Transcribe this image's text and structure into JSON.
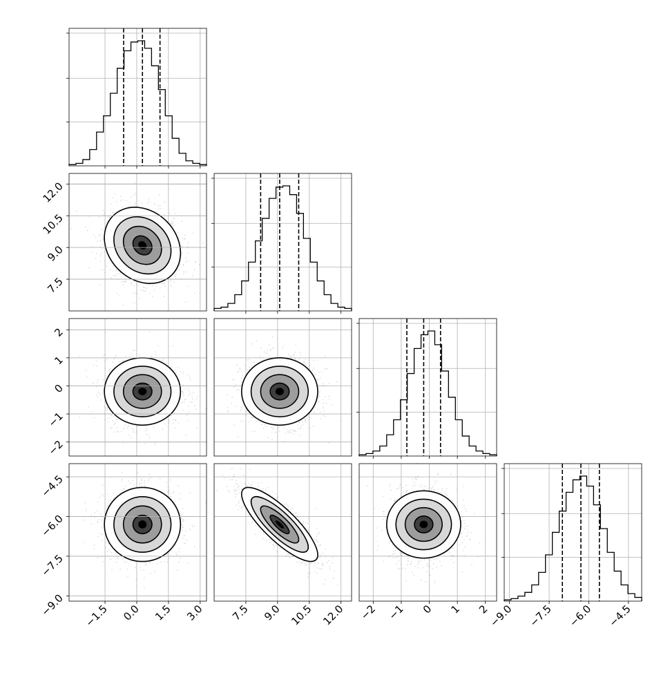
{
  "chart_data": {
    "type": "corner",
    "title": "",
    "parameters": [
      {
        "range": [
          -3.2,
          3.3
        ],
        "ticks": [
          -1.5,
          0.0,
          1.5,
          3.0
        ],
        "tick_labels": [
          "−1.5",
          "0.0",
          "1.5",
          "3.0"
        ],
        "quantiles": [
          -0.62,
          0.27,
          1.1
        ],
        "histogram": {
          "edges": [
            -3.2,
            -2.875,
            -2.55,
            -2.225,
            -1.9,
            -1.575,
            -1.25,
            -0.925,
            -0.6,
            -0.275,
            0.05,
            0.375,
            0.7,
            1.025,
            1.35,
            1.675,
            2.0,
            2.325,
            2.65,
            2.975,
            3.3
          ],
          "counts": [
            1,
            2,
            5,
            13,
            27,
            40,
            58,
            78,
            92,
            99,
            100,
            94,
            80,
            61,
            40,
            22,
            10,
            4,
            2,
            1
          ]
        }
      },
      {
        "range": [
          6.0,
          12.5
        ],
        "ticks": [
          7.5,
          9.0,
          10.5,
          12.0
        ],
        "tick_labels": [
          "7.5",
          "9.0",
          "10.5",
          "12.0"
        ],
        "quantiles": [
          8.2,
          9.1,
          10.0
        ],
        "histogram": {
          "edges": [
            6.0,
            6.325,
            6.65,
            6.975,
            7.3,
            7.625,
            7.95,
            8.275,
            8.6,
            8.925,
            9.25,
            9.575,
            9.9,
            10.225,
            10.55,
            10.875,
            11.2,
            11.525,
            11.85,
            12.175,
            12.5
          ],
          "counts": [
            2,
            3,
            6,
            13,
            24,
            39,
            56,
            74,
            90,
            99,
            100,
            93,
            78,
            58,
            39,
            24,
            13,
            6,
            3,
            2
          ]
        }
      },
      {
        "range": [
          -2.5,
          2.4
        ],
        "ticks": [
          -2,
          -1,
          0,
          1,
          2
        ],
        "tick_labels": [
          "−2",
          "−1",
          "0",
          "1",
          "2"
        ],
        "quantiles": [
          -0.8,
          -0.2,
          0.4
        ],
        "histogram": {
          "edges": [
            -2.5,
            -2.255,
            -2.01,
            -1.765,
            -1.52,
            -1.275,
            -1.03,
            -0.785,
            -0.54,
            -0.295,
            -0.05,
            0.195,
            0.44,
            0.685,
            0.93,
            1.175,
            1.42,
            1.665,
            1.91,
            2.155,
            2.4
          ],
          "counts": [
            1,
            2,
            4,
            8,
            17,
            29,
            45,
            66,
            86,
            97,
            100,
            89,
            68,
            47,
            29,
            16,
            8,
            4,
            2,
            1
          ]
        }
      },
      {
        "range": [
          -9.2,
          -4.0
        ],
        "ticks": [
          -9.0,
          -7.5,
          -6.0,
          -4.5
        ],
        "tick_labels": [
          "−9.0",
          "−7.5",
          "−6.0",
          "−4.5"
        ],
        "quantiles": [
          -7.0,
          -6.3,
          -5.6
        ],
        "histogram": {
          "edges": [
            -9.2,
            -8.94,
            -8.68,
            -8.42,
            -8.16,
            -7.9,
            -7.64,
            -7.38,
            -7.12,
            -6.86,
            -6.6,
            -6.34,
            -6.08,
            -5.82,
            -5.56,
            -5.3,
            -5.04,
            -4.78,
            -4.52,
            -4.26,
            -4.0
          ],
          "counts": [
            1,
            2,
            4,
            7,
            13,
            23,
            37,
            55,
            72,
            87,
            97,
            100,
            92,
            77,
            58,
            39,
            24,
            13,
            6,
            3
          ]
        }
      }
    ],
    "panels_2d": [
      {
        "row": 1,
        "col": 0,
        "x_mean": 0.27,
        "y_mean": 9.1,
        "x_sd": 0.9,
        "y_sd": 0.9,
        "rho": -0.2
      },
      {
        "row": 2,
        "col": 0,
        "x_mean": 0.27,
        "y_mean": -0.2,
        "x_sd": 0.9,
        "y_sd": 0.6,
        "rho": 0.0
      },
      {
        "row": 2,
        "col": 1,
        "x_mean": 9.1,
        "y_mean": -0.2,
        "x_sd": 0.9,
        "y_sd": 0.6,
        "rho": 0.0
      },
      {
        "row": 3,
        "col": 0,
        "x_mean": 0.27,
        "y_mean": -6.3,
        "x_sd": 0.9,
        "y_sd": 0.7,
        "rho": 0.0
      },
      {
        "row": 3,
        "col": 1,
        "x_mean": 9.1,
        "y_mean": -6.3,
        "x_sd": 0.9,
        "y_sd": 0.7,
        "rho": -0.82
      },
      {
        "row": 3,
        "col": 2,
        "x_mean": -0.2,
        "y_mean": -6.3,
        "x_sd": 0.6,
        "y_sd": 0.7,
        "rho": 0.0
      }
    ],
    "grid": true,
    "colors": {
      "line": "#000000",
      "scatter": "#8f8f8f",
      "grid": "#b0b0b0"
    }
  }
}
